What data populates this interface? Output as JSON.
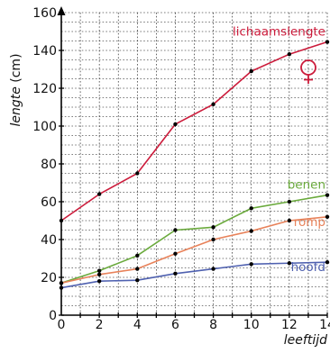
{
  "chart_data": {
    "type": "line",
    "title": "",
    "ylabel_italic": "lengte",
    "ylabel_unit": " (cm)",
    "xlabel": "leeftijd",
    "xlim": [
      0,
      14
    ],
    "ylim": [
      0,
      160
    ],
    "x_ticks": [
      0,
      2,
      4,
      6,
      8,
      10,
      12,
      14
    ],
    "y_ticks": [
      0,
      20,
      40,
      60,
      80,
      100,
      120,
      140,
      160
    ],
    "grid": true,
    "symbol": "♀",
    "x": [
      0,
      2,
      4,
      6,
      8,
      10,
      12,
      14
    ],
    "series": [
      {
        "name": "lichaamslengte",
        "color": "#cc1b3b",
        "values": [
          50,
          64,
          75,
          101,
          111.5,
          129,
          138,
          144.5
        ]
      },
      {
        "name": "benen",
        "color": "#6aaa3c",
        "values": [
          17,
          23.5,
          31.5,
          45,
          46.5,
          56.5,
          60,
          63.5
        ]
      },
      {
        "name": "romp",
        "color": "#e8825a",
        "values": [
          17,
          21.5,
          24.5,
          32.5,
          40,
          44.5,
          50,
          52
        ]
      },
      {
        "name": "hoofd",
        "color": "#4f61b0",
        "values": [
          14.5,
          18,
          18.5,
          22,
          24.5,
          27,
          27.5,
          28
        ]
      }
    ]
  }
}
